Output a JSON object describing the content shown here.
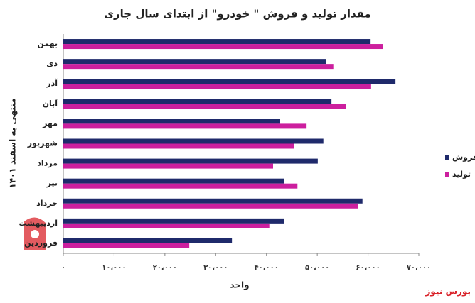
{
  "chart_data": {
    "type": "bar",
    "orientation": "horizontal",
    "title": "مقدار تولید و فروش \" خودرو\" از ابتدای سال جاری",
    "y_label": "منتهی به اسفند ۱۴۰۱",
    "x_label": "واحد",
    "categories": [
      "بهمن",
      "دی",
      "آذر",
      "آبان",
      "مهر",
      "شهریور",
      "مرداد",
      "تیر",
      "خرداد",
      "اردیبهشت",
      "فروردین"
    ],
    "series": [
      {
        "name": "فروش",
        "color": "#1f2a6b",
        "values": [
          60500,
          51800,
          65400,
          52800,
          42700,
          51200,
          50100,
          43400,
          58900,
          43500,
          33200
        ]
      },
      {
        "name": "تولید",
        "color": "#cc1f9e",
        "values": [
          63000,
          53300,
          60600,
          55700,
          47900,
          45400,
          41300,
          46100,
          58000,
          40700,
          24800
        ]
      }
    ],
    "xlim": [
      0,
      70000
    ],
    "xticks": [
      {
        "value": 0,
        "label": "۰"
      },
      {
        "value": 10000,
        "label": "۱۰،۰۰۰"
      },
      {
        "value": 20000,
        "label": "۲۰،۰۰۰"
      },
      {
        "value": 30000,
        "label": "۳۰،۰۰۰"
      },
      {
        "value": 40000,
        "label": "۴۰،۰۰۰"
      },
      {
        "value": 50000,
        "label": "۵۰،۰۰۰"
      },
      {
        "value": 60000,
        "label": "۶۰،۰۰۰"
      },
      {
        "value": 70000,
        "label": "۷۰،۰۰۰"
      }
    ],
    "legend": "right",
    "grid": false
  },
  "watermark": "بورس نیوز"
}
